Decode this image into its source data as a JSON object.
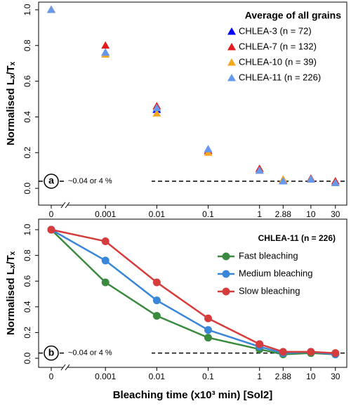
{
  "chart_data": [
    {
      "type": "scatter",
      "marker": "triangle",
      "panel_label": "a",
      "ylabel": "Normalised Lₓ/Tₓ",
      "legend_title": "Average of all grains",
      "legend": "top-right",
      "x": [
        0,
        0.001,
        0.01,
        0.1,
        1,
        2.88,
        10,
        30
      ],
      "xscale": "log",
      "x_break": true,
      "xlim": [
        5e-05,
        50
      ],
      "xticks": [
        0,
        0.001,
        0.01,
        0.1,
        1,
        2.88,
        10,
        30
      ],
      "ylim": [
        -0.094,
        1.043
      ],
      "yticks": [
        {
          "value": 0,
          "label": "0.0"
        },
        0.2,
        0.4,
        0.6,
        0.8,
        {
          "value": 1,
          "label": "1.0"
        }
      ],
      "hline": 0.04,
      "hline_label": "~0.04 or 4 %",
      "series": [
        {
          "name": "CHLEA-3 (n = 72)",
          "color": "#0000ff",
          "values": [
            1.0,
            0.76,
            0.44,
            0.21,
            0.1,
            0.04,
            0.05,
            0.03
          ]
        },
        {
          "name": "CHLEA-7 (n = 132)",
          "color": "#e31a1c",
          "values": [
            1.0,
            0.8,
            0.46,
            0.21,
            0.11,
            0.045,
            0.055,
            0.04
          ]
        },
        {
          "name": "CHLEA-10 (n = 39)",
          "color": "#f5a623",
          "values": [
            1.0,
            0.75,
            0.42,
            0.2,
            0.1,
            0.05,
            0.05,
            0.03
          ]
        },
        {
          "name": "CHLEA-11 (n = 226)",
          "color": "#6699ee",
          "values": [
            1.0,
            0.76,
            0.45,
            0.22,
            0.1,
            0.04,
            0.05,
            0.03
          ]
        }
      ]
    },
    {
      "type": "line",
      "marker": "circle",
      "panel_label": "b",
      "ylabel": "Normalised Lₓ/Tₓ",
      "xlabel": "Bleaching time (x10³ min) [Sol2]",
      "legend_title": "CHLEA-11 (n = 226)",
      "legend": "top-right",
      "x": [
        0,
        0.001,
        0.01,
        0.1,
        1,
        2.88,
        10,
        30
      ],
      "xscale": "log",
      "x_break": true,
      "xlim": [
        5e-05,
        50
      ],
      "xticks": [
        0,
        0.001,
        0.01,
        0.1,
        1,
        2.88,
        10,
        30
      ],
      "ylim": [
        -0.071,
        1.082
      ],
      "yticks": [
        {
          "value": 0,
          "label": "0.0"
        },
        0.2,
        0.4,
        0.6,
        0.8,
        {
          "value": 1,
          "label": "1.0"
        }
      ],
      "hline": 0.04,
      "hline_label": "~0.04 or 4 %",
      "series": [
        {
          "name": "Fast bleaching",
          "color": "#3a8a3f",
          "values": [
            1.0,
            0.59,
            0.33,
            0.16,
            0.07,
            0.03,
            0.04,
            0.03
          ]
        },
        {
          "name": "Medium bleaching",
          "color": "#3a86d8",
          "values": [
            1.0,
            0.76,
            0.45,
            0.22,
            0.09,
            0.04,
            0.05,
            0.03
          ]
        },
        {
          "name": "Slow bleaching",
          "color": "#d63c3c",
          "values": [
            1.0,
            0.91,
            0.59,
            0.31,
            0.11,
            0.05,
            0.05,
            0.04
          ]
        }
      ]
    }
  ]
}
